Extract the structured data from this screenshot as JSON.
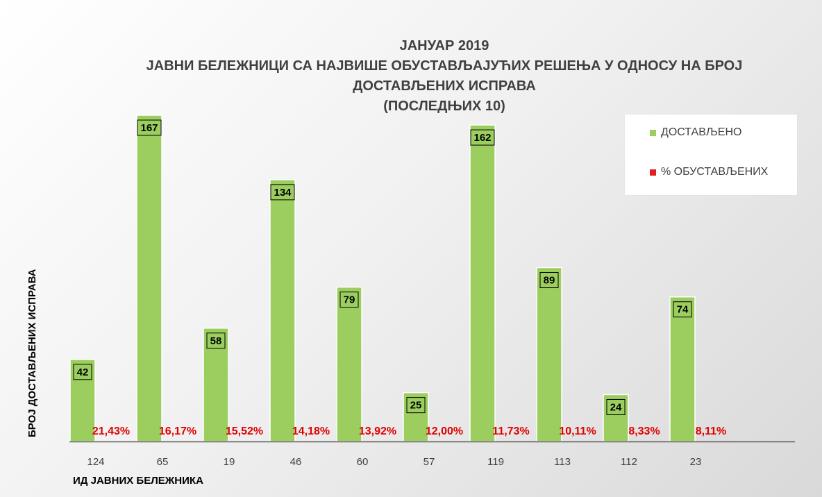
{
  "title": {
    "line1": "ЈАНУАР 2019",
    "line2": "ЈАВНИ БЕЛЕЖНИЦИ СА НАЈВИШЕ ОБУСТАВЉАЈУЋИХ РЕШЕЊА У ОДНОСУ  НА БРОЈ",
    "line3": "ДОСТАВЉЕНИХ ИСПРАВА",
    "line4": "(ПОСЛЕДЊИХ 10)"
  },
  "legend": {
    "delivered": "ДОСТАВЉЕНО",
    "suspended": "% ОБУСТАВЉЕНИХ"
  },
  "colors": {
    "bar": "#9BCE5E",
    "percent": "#e00000",
    "legend_percent": "#e02020"
  },
  "chart_data": {
    "type": "bar",
    "title": "ЈАНУАР 2019 ЈАВНИ БЕЛЕЖНИЦИ СА НАЈВИШЕ ОБУСТАВЉАЈУЋИХ РЕШЕЊА У ОДНОСУ  НА БРОЈ ДОСТАВЉЕНИХ ИСПРАВА (ПОСЛЕДЊИХ 10)",
    "xlabel": "ИД ЈАВНИХ БЕЛЕЖНИКА",
    "ylabel": "БРОЈ ДОСТАВЉЕНИХ ИСПРАВА",
    "categories": [
      "124",
      "65",
      "19",
      "46",
      "60",
      "57",
      "119",
      "113",
      "112",
      "23"
    ],
    "series": [
      {
        "name": "ДОСТАВЉЕНО",
        "values": [
          42,
          167,
          58,
          134,
          79,
          25,
          162,
          89,
          24,
          74
        ]
      },
      {
        "name": "% ОБУСТАВЉЕНИХ",
        "values": [
          21.43,
          16.17,
          15.52,
          14.18,
          13.92,
          12.0,
          11.73,
          10.11,
          8.33,
          8.11
        ]
      }
    ],
    "percent_labels": [
      "21,43%",
      "16,17%",
      "15,52%",
      "14,18%",
      "13,92%",
      "12,00%",
      "11,73%",
      "10,11%",
      "8,33%",
      "8,11%"
    ],
    "ylim": [
      0,
      167
    ],
    "grid": false,
    "legend_position": "top-right"
  }
}
